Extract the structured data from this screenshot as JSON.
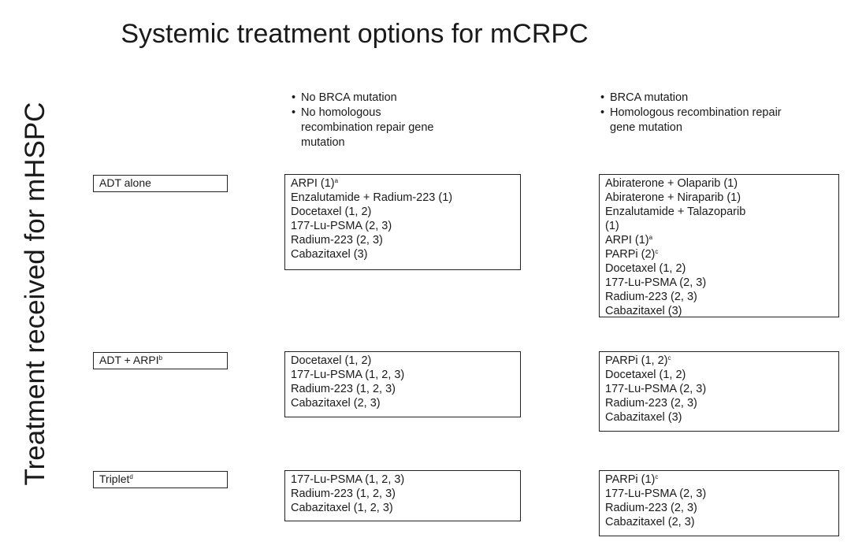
{
  "title": "Systemic treatment options for mCRPC",
  "row_axis_label": "Treatment received for mHSPC",
  "columns": [
    {
      "bullets": [
        "No BRCA mutation",
        "No homologous recombination repair gene mutation"
      ]
    },
    {
      "bullets": [
        "BRCA mutation",
        "Homologous recombination repair gene mutation"
      ]
    }
  ],
  "rows": [
    {
      "label": "ADT alone",
      "label_sup": "",
      "no_mutation": [
        {
          "text": "ARPI (1)",
          "sup": "a"
        },
        {
          "text": "Enzalutamide + Radium-223 (1)",
          "sup": ""
        },
        {
          "text": "Docetaxel (1, 2)",
          "sup": ""
        },
        {
          "text": "177-Lu-PSMA (2, 3)",
          "sup": ""
        },
        {
          "text": "Radium-223 (2, 3)",
          "sup": ""
        },
        {
          "text": "Cabazitaxel  (3)",
          "sup": ""
        }
      ],
      "mutation": [
        {
          "text": "Abiraterone + Olaparib (1)",
          "sup": ""
        },
        {
          "text": "Abiraterone + Niraparib (1)",
          "sup": ""
        },
        {
          "text": "Enzalutamide + Talazoparib",
          "sup": ""
        },
        {
          "text": "(1)",
          "sup": ""
        },
        {
          "text": "ARPI (1)",
          "sup": "a"
        },
        {
          "text": "PARPi  (2)",
          "sup": "c"
        },
        {
          "text": "Docetaxel (1, 2)",
          "sup": ""
        },
        {
          "text": "177-Lu-PSMA (2, 3)",
          "sup": ""
        },
        {
          "text": "Radium-223 (2, 3)",
          "sup": ""
        },
        {
          "text": "Cabazitaxel  (3)",
          "sup": ""
        }
      ]
    },
    {
      "label": "ADT + ARPI",
      "label_sup": "b",
      "no_mutation": [
        {
          "text": "Docetaxel (1, 2)",
          "sup": ""
        },
        {
          "text": "177-Lu-PSMA (1, 2, 3)",
          "sup": ""
        },
        {
          "text": "Radium-223 (1, 2, 3)",
          "sup": ""
        },
        {
          "text": "Cabazitaxel  (2, 3)",
          "sup": ""
        }
      ],
      "mutation": [
        {
          "text": "PARPi  (1, 2)",
          "sup": "c"
        },
        {
          "text": "Docetaxel (1, 2)",
          "sup": ""
        },
        {
          "text": "177-Lu-PSMA (2, 3)",
          "sup": ""
        },
        {
          "text": "Radium-223 (2, 3)",
          "sup": ""
        },
        {
          "text": "Cabazitaxel  (3)",
          "sup": ""
        }
      ]
    },
    {
      "label": "Triplet",
      "label_sup": "d",
      "no_mutation": [
        {
          "text": "177-Lu-PSMA (1, 2, 3)",
          "sup": ""
        },
        {
          "text": "Radium-223 (1, 2, 3)",
          "sup": ""
        },
        {
          "text": "Cabazitaxel  (1, 2, 3)",
          "sup": ""
        }
      ],
      "mutation": [
        {
          "text": "PARPi  (1)",
          "sup": "c"
        },
        {
          "text": "177-Lu-PSMA (2, 3)",
          "sup": ""
        },
        {
          "text": "Radium-223 (2, 3)",
          "sup": ""
        },
        {
          "text": "Cabazitaxel  (2, 3)",
          "sup": ""
        }
      ]
    }
  ]
}
